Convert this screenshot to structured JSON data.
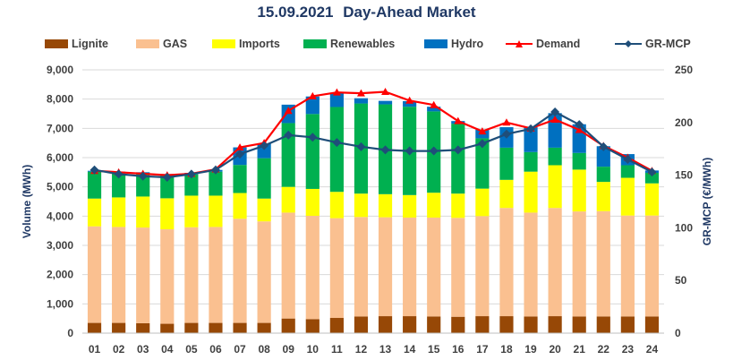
{
  "chart_data": {
    "type": "bar",
    "title_date": "15.09.2021",
    "title_text": "Day-Ahead Market",
    "categories": [
      "01",
      "02",
      "03",
      "04",
      "05",
      "06",
      "07",
      "08",
      "09",
      "10",
      "11",
      "12",
      "13",
      "14",
      "15",
      "16",
      "17",
      "18",
      "19",
      "20",
      "21",
      "22",
      "23",
      "24"
    ],
    "ylabel": "Volume (MWh)",
    "y2label": "GR-MCP (€/MWh)",
    "ylim": [
      0,
      9000
    ],
    "y2lim": [
      0,
      250
    ],
    "yticks": [
      "0",
      "1,000",
      "2,000",
      "3,000",
      "4,000",
      "5,000",
      "6,000",
      "7,000",
      "8,000",
      "9,000"
    ],
    "y2ticks": [
      "0",
      "50",
      "100",
      "150",
      "200",
      "250"
    ],
    "stacked_series": [
      {
        "name": "Lignite",
        "color": "#974806",
        "values": [
          350,
          350,
          340,
          320,
          350,
          350,
          350,
          350,
          500,
          480,
          520,
          570,
          580,
          580,
          570,
          560,
          580,
          580,
          570,
          580,
          570,
          570,
          570,
          570
        ]
      },
      {
        "name": "GAS",
        "color": "#fac090",
        "values": [
          3300,
          3280,
          3270,
          3230,
          3270,
          3280,
          3560,
          3470,
          3620,
          3530,
          3410,
          3400,
          3380,
          3370,
          3380,
          3380,
          3420,
          3700,
          3550,
          3700,
          3590,
          3600,
          3450,
          3450
        ]
      },
      {
        "name": "Imports",
        "color": "#ffff00",
        "values": [
          950,
          1010,
          1060,
          1060,
          1080,
          1070,
          880,
          780,
          880,
          920,
          900,
          800,
          790,
          770,
          850,
          830,
          940,
          960,
          1400,
          1460,
          1430,
          1000,
          1290,
          1100
        ]
      },
      {
        "name": "Renewables",
        "color": "#00b050",
        "values": [
          920,
          820,
          770,
          790,
          730,
          820,
          960,
          1380,
          2180,
          2560,
          2900,
          3080,
          3070,
          3020,
          2780,
          2390,
          1720,
          1100,
          670,
          600,
          570,
          520,
          430,
          360
        ]
      },
      {
        "name": "Hydro",
        "color": "#0070c0",
        "values": [
          30,
          60,
          60,
          40,
          50,
          60,
          600,
          500,
          630,
          600,
          490,
          180,
          120,
          190,
          160,
          90,
          300,
          700,
          850,
          1180,
          980,
          700,
          380,
          80
        ]
      }
    ],
    "line_series": [
      {
        "name": "Demand",
        "color": "#ff0000",
        "marker": "triangle",
        "axis": "left",
        "values": [
          5550,
          5500,
          5450,
          5400,
          5450,
          5600,
          6350,
          6500,
          7600,
          8100,
          8230,
          8200,
          8250,
          7950,
          7800,
          7250,
          6900,
          7200,
          7000,
          7300,
          6950,
          6400,
          6000,
          5550
        ]
      },
      {
        "name": "GR-MCP",
        "color": "#1f4e79",
        "marker": "diamond",
        "axis": "right",
        "values": [
          155,
          151,
          149,
          148,
          151,
          155,
          170,
          178,
          188,
          186,
          181,
          177,
          174,
          173,
          173,
          174,
          180,
          189,
          194,
          210,
          198,
          177,
          165,
          153
        ]
      }
    ],
    "legend_order": [
      "Lignite",
      "GAS",
      "Imports",
      "Renewables",
      "Hydro",
      "Demand",
      "GR-MCP"
    ]
  }
}
